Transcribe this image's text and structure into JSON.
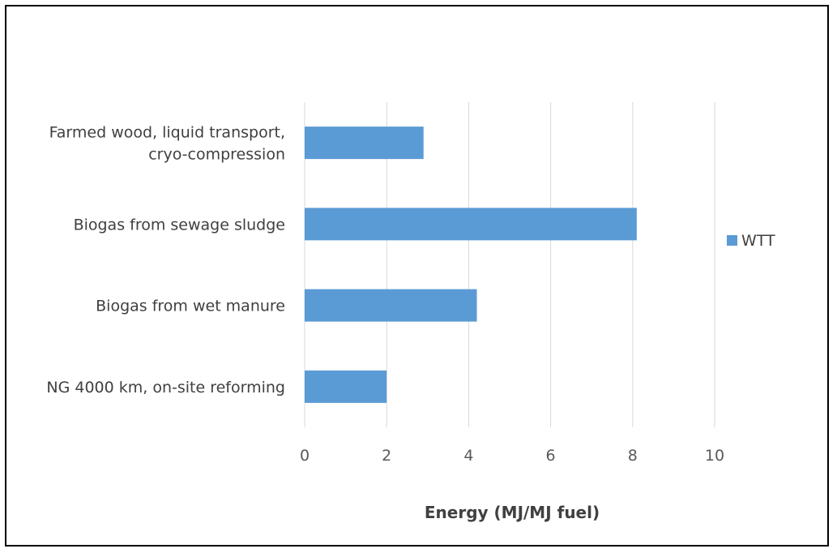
{
  "chart_data": {
    "type": "bar",
    "orientation": "horizontal",
    "categories": [
      [
        "Farmed wood, liquid transport,",
        "cryo-compression"
      ],
      [
        "Biogas from sewage sludge"
      ],
      [
        "Biogas from wet manure"
      ],
      [
        "NG 4000 km, on-site reforming"
      ]
    ],
    "series": [
      {
        "name": "WTT",
        "values": [
          2.9,
          8.1,
          4.2,
          2.0
        ],
        "color": "#5B9BD5"
      }
    ],
    "xlabel": "Energy (MJ/MJ fuel)",
    "ylabel": "",
    "xlim": [
      0,
      10
    ],
    "xticks": [
      "0",
      "2",
      "4",
      "6",
      "8",
      "10"
    ],
    "grid": "vertical",
    "legend_position": "right",
    "gridline_color": "#D9D9D9"
  }
}
